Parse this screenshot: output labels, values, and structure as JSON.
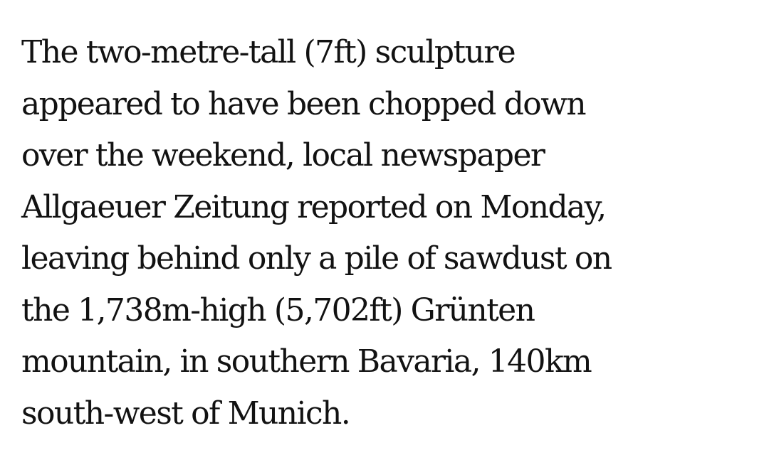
{
  "article": {
    "paragraph_lines": [
      "The two-metre-tall (7ft) sculpture",
      "appeared to have been chopped down",
      "over the weekend, local newspaper",
      "Allgaeuer Zeitung reported on Monday,",
      "leaving behind only a pile of sawdust on",
      "the 1,738m-high (5,702ft) Grünten",
      "mountain, in southern Bavaria, 140km",
      "south-west of Munich."
    ]
  }
}
